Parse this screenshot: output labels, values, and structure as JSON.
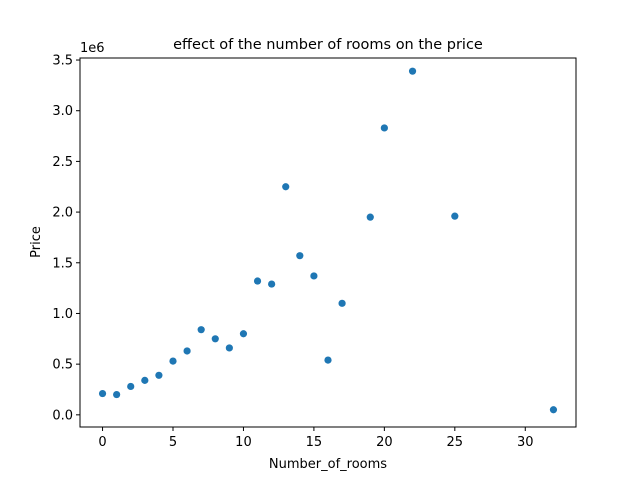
{
  "chart_data": {
    "type": "scatter",
    "title": "effect of the number of rooms on the price",
    "xlabel": "Number_of_rooms",
    "ylabel": "Price",
    "y_offset_label": "1e6",
    "xlim": [
      -1.6,
      33.6
    ],
    "ylim": [
      -0.12,
      3.52
    ],
    "x_ticks": [
      0,
      5,
      10,
      15,
      20,
      25,
      30
    ],
    "x_tick_labels": [
      "0",
      "5",
      "10",
      "15",
      "20",
      "25",
      "30"
    ],
    "y_ticks": [
      0.0,
      0.5,
      1.0,
      1.5,
      2.0,
      2.5,
      3.0,
      3.5
    ],
    "y_tick_labels": [
      "0.0",
      "0.5",
      "1.0",
      "1.5",
      "2.0",
      "2.5",
      "3.0",
      "3.5"
    ],
    "grid": false,
    "marker_color": "#1f77b4",
    "points": [
      {
        "x": 0,
        "y": 0.21
      },
      {
        "x": 1,
        "y": 0.2
      },
      {
        "x": 2,
        "y": 0.28
      },
      {
        "x": 3,
        "y": 0.34
      },
      {
        "x": 4,
        "y": 0.39
      },
      {
        "x": 5,
        "y": 0.53
      },
      {
        "x": 6,
        "y": 0.63
      },
      {
        "x": 7,
        "y": 0.84
      },
      {
        "x": 8,
        "y": 0.75
      },
      {
        "x": 9,
        "y": 0.66
      },
      {
        "x": 10,
        "y": 0.8
      },
      {
        "x": 11,
        "y": 1.32
      },
      {
        "x": 12,
        "y": 1.29
      },
      {
        "x": 13,
        "y": 2.25
      },
      {
        "x": 14,
        "y": 1.57
      },
      {
        "x": 15,
        "y": 1.37
      },
      {
        "x": 16,
        "y": 0.54
      },
      {
        "x": 17,
        "y": 1.1
      },
      {
        "x": 19,
        "y": 1.95
      },
      {
        "x": 20,
        "y": 2.83
      },
      {
        "x": 22,
        "y": 3.39
      },
      {
        "x": 25,
        "y": 1.96
      },
      {
        "x": 32,
        "y": 0.05
      }
    ]
  }
}
